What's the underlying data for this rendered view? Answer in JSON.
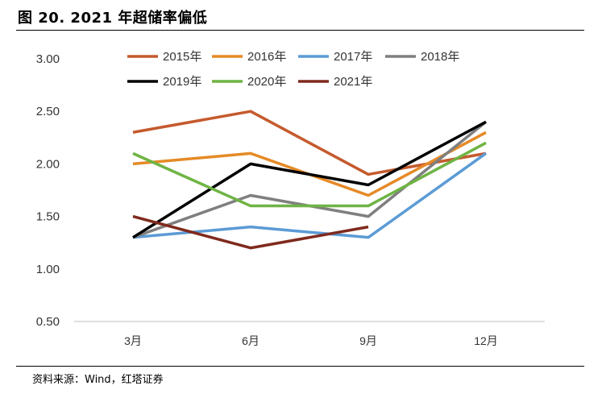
{
  "figure": {
    "title": "图 20. 2021 年超储率偏低",
    "source": "资料来源：Wind，红塔证券"
  },
  "chart_data": {
    "type": "line",
    "categories": [
      "3月",
      "6月",
      "9月",
      "12月"
    ],
    "ylim": [
      0.5,
      3.0
    ],
    "yticks": [
      "0.50",
      "1.00",
      "1.50",
      "2.00",
      "2.50",
      "3.00"
    ],
    "ytick_values": [
      0.5,
      1.0,
      1.5,
      2.0,
      2.5,
      3.0
    ],
    "grid": false,
    "legend_position": "top",
    "series": [
      {
        "name": "2015年",
        "color": "#c55a2d",
        "values": [
          2.3,
          2.5,
          1.9,
          2.1
        ]
      },
      {
        "name": "2016年",
        "color": "#e58a26",
        "values": [
          2.0,
          2.1,
          1.7,
          2.3
        ]
      },
      {
        "name": "2017年",
        "color": "#5b9bd5",
        "values": [
          1.3,
          1.4,
          1.3,
          2.1
        ]
      },
      {
        "name": "2018年",
        "color": "#7f7f7f",
        "values": [
          1.3,
          1.7,
          1.5,
          2.4
        ]
      },
      {
        "name": "2019年",
        "color": "#000000",
        "values": [
          1.3,
          2.0,
          1.8,
          2.4
        ]
      },
      {
        "name": "2020年",
        "color": "#6fb444",
        "values": [
          2.1,
          1.6,
          1.6,
          2.2
        ]
      },
      {
        "name": "2021年",
        "color": "#7f2a1d",
        "values": [
          1.5,
          1.2,
          1.4,
          null
        ]
      }
    ]
  }
}
